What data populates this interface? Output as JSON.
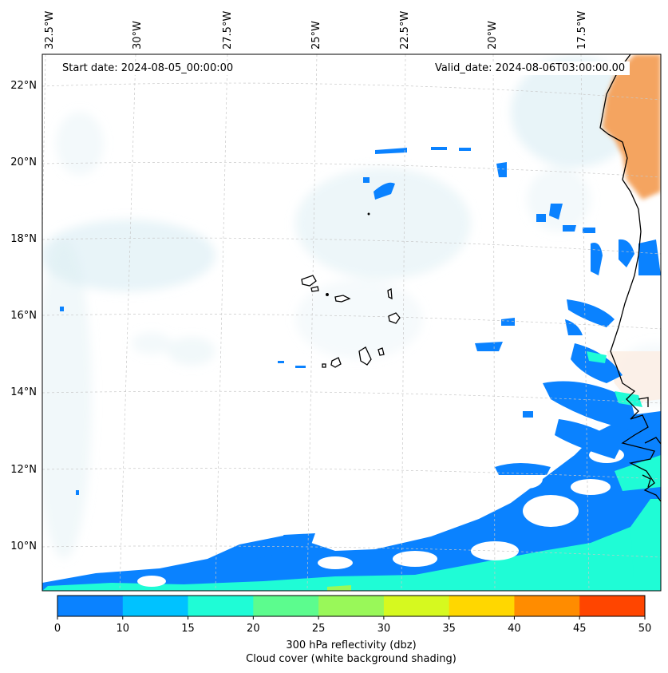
{
  "start_date": "Start date: 2024-08-05_00:00:00",
  "valid_date": "Valid_date: 2024-08-06T03:00:00.00",
  "lon_labels": [
    "32.5°W",
    "30°W",
    "27.5°W",
    "25°W",
    "22.5°W",
    "20°W",
    "17.5°W"
  ],
  "lat_labels": [
    "22°N",
    "20°N",
    "18°N",
    "16°N",
    "14°N",
    "12°N",
    "10°N"
  ],
  "colorbar": {
    "ticks": [
      "0",
      "10",
      "15",
      "20",
      "25",
      "30",
      "35",
      "40",
      "45",
      "50"
    ],
    "colors": [
      "#0a82ff",
      "#00c2ff",
      "#1ffcd6",
      "#5cfc8e",
      "#99f859",
      "#d6f91f",
      "#ffd700",
      "#ff8c00",
      "#ff4500"
    ],
    "label_line1": "300 hPa reflectivity (dbz)",
    "label_line2": "Cloud cover (white background shading)"
  },
  "palette": {
    "cloud": "#d6ebf2",
    "land_warm": "#f4a460",
    "reflectivity_low": "#0a82ff",
    "reflectivity_mid": "#1ffcd6",
    "reflectivity_high": "#99f859",
    "coastline": "#000000",
    "grid": "#b8b8b8"
  }
}
